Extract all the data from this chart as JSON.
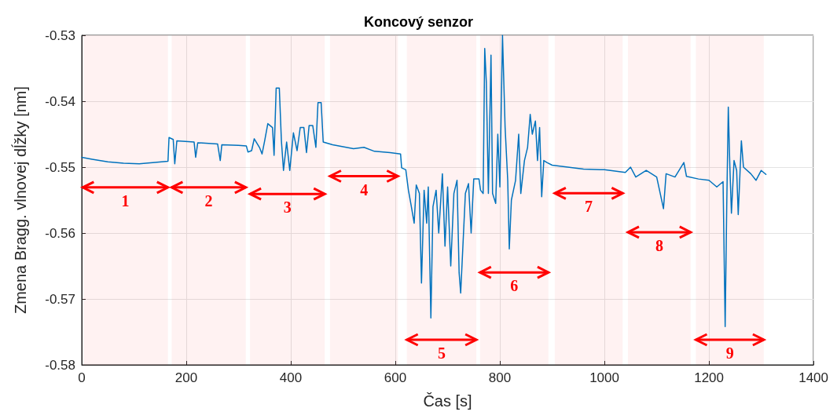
{
  "chart_data": {
    "type": "line",
    "title": "Koncový senzor",
    "xlabel": "Čas [s]",
    "ylabel": "Zmena Bragg. vlnovej dĺžky [nm]",
    "xlim": [
      0,
      1400
    ],
    "xticks": [
      0,
      200,
      400,
      600,
      800,
      {
        "value": 1000,
        "label": "1000"
      },
      {
        "value": 1200,
        "label": "1200"
      },
      {
        "value": 1400,
        "label": "1400"
      }
    ],
    "ylim": [
      -0.58,
      -0.53
    ],
    "yticks": [
      -0.58,
      -0.57,
      -0.56,
      -0.55,
      -0.54,
      -0.53
    ],
    "grid": true,
    "marker": "none",
    "line_style": "solid",
    "bands": [
      {
        "axis": "x",
        "from": 2,
        "to": 165,
        "label": "1",
        "color": "#ff0000"
      },
      {
        "axis": "x",
        "from": 172,
        "to": 314,
        "label": "2",
        "color": "#ff0000"
      },
      {
        "axis": "x",
        "from": 322,
        "to": 465,
        "label": "3",
        "color": "#ff0000"
      },
      {
        "axis": "x",
        "from": 475,
        "to": 605,
        "label": "4",
        "color": "#ff0000"
      },
      {
        "axis": "x",
        "from": 622,
        "to": 755,
        "label": "5",
        "color": "#ff0000"
      },
      {
        "axis": "x",
        "from": 762,
        "to": 893,
        "label": "6",
        "color": "#ff0000"
      },
      {
        "axis": "x",
        "from": 905,
        "to": 1035,
        "label": "7",
        "color": "#ff0000"
      },
      {
        "axis": "x",
        "from": 1045,
        "to": 1165,
        "label": "8",
        "color": "#ff0000"
      },
      {
        "axis": "x",
        "from": 1175,
        "to": 1305,
        "label": "9",
        "color": "#ff0000"
      }
    ],
    "series": [
      {
        "color": "#0072bd",
        "x": [
          0,
          20,
          50,
          80,
          110,
          140,
          165,
          167,
          175,
          178,
          182,
          215,
          218,
          222,
          260,
          265,
          268,
          300,
          315,
          318,
          325,
          330,
          340,
          345,
          350,
          356,
          365,
          368,
          372,
          378,
          382,
          386,
          392,
          398,
          405,
          412,
          418,
          425,
          430,
          435,
          442,
          448,
          452,
          458,
          462,
          480,
          520,
          540,
          560,
          590,
          610,
          612,
          620,
          625,
          630,
          636,
          640,
          646,
          650,
          655,
          660,
          663,
          668,
          672,
          678,
          683,
          690,
          695,
          700,
          706,
          712,
          718,
          722,
          725,
          734,
          740,
          745,
          750,
          760,
          763,
          768,
          771,
          774,
          778,
          783,
          786,
          792,
          796,
          800,
          805,
          810,
          815,
          818,
          822,
          830,
          836,
          840,
          847,
          853,
          858,
          862,
          868,
          872,
          876,
          880,
          884,
          890,
          900,
          930,
          960,
          1000,
          1040,
          1050,
          1060,
          1080,
          1100,
          1113,
          1118,
          1135,
          1152,
          1157,
          1180,
          1200,
          1215,
          1227,
          1231,
          1234,
          1237,
          1240,
          1243,
          1248,
          1253,
          1256,
          1262,
          1266,
          1280,
          1290,
          1300,
          1309
        ],
        "values": [
          -0.5485,
          -0.5488,
          -0.5492,
          -0.5494,
          -0.5495,
          -0.5493,
          -0.5491,
          -0.5455,
          -0.5458,
          -0.5495,
          -0.546,
          -0.5462,
          -0.5485,
          -0.5463,
          -0.5465,
          -0.549,
          -0.5466,
          -0.5467,
          -0.5468,
          -0.5477,
          -0.5475,
          -0.5457,
          -0.547,
          -0.548,
          -0.546,
          -0.5434,
          -0.544,
          -0.5482,
          -0.538,
          -0.538,
          -0.546,
          -0.5505,
          -0.5462,
          -0.5505,
          -0.5448,
          -0.5475,
          -0.544,
          -0.544,
          -0.5478,
          -0.5437,
          -0.5437,
          -0.547,
          -0.5402,
          -0.5402,
          -0.5462,
          -0.5466,
          -0.5472,
          -0.547,
          -0.5476,
          -0.5478,
          -0.548,
          -0.5501,
          -0.5504,
          -0.5535,
          -0.5557,
          -0.5585,
          -0.5527,
          -0.554,
          -0.5676,
          -0.5535,
          -0.5585,
          -0.553,
          -0.5729,
          -0.556,
          -0.5535,
          -0.56,
          -0.551,
          -0.562,
          -0.553,
          -0.565,
          -0.554,
          -0.552,
          -0.566,
          -0.5691,
          -0.554,
          -0.5525,
          -0.56,
          -0.5518,
          -0.5518,
          -0.5535,
          -0.554,
          -0.532,
          -0.537,
          -0.554,
          -0.533,
          -0.554,
          -0.5555,
          -0.545,
          -0.553,
          -0.53,
          -0.544,
          -0.552,
          -0.5624,
          -0.555,
          -0.552,
          -0.545,
          -0.554,
          -0.549,
          -0.547,
          -0.542,
          -0.545,
          -0.543,
          -0.549,
          -0.544,
          -0.5545,
          -0.549,
          -0.5493,
          -0.5497,
          -0.55,
          -0.5503,
          -0.5504,
          -0.5508,
          -0.55,
          -0.5515,
          -0.5505,
          -0.5515,
          -0.5563,
          -0.551,
          -0.5515,
          -0.5493,
          -0.5514,
          -0.5518,
          -0.552,
          -0.553,
          -0.5522,
          -0.5742,
          -0.556,
          -0.5409,
          -0.55,
          -0.557,
          -0.549,
          -0.5505,
          -0.5572,
          -0.546,
          -0.55,
          -0.551,
          -0.552,
          -0.5505,
          -0.5511
        ]
      }
    ]
  }
}
